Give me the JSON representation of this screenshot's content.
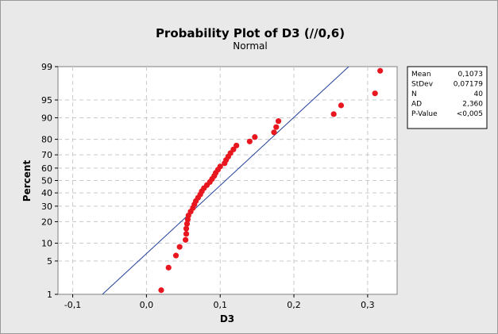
{
  "chart_data": {
    "type": "scatter",
    "title": "Probability Plot of D3 (//0,6)",
    "subtitle": "Normal",
    "xlabel": "D3",
    "ylabel": "Percent",
    "xlim": [
      -0.12,
      0.34
    ],
    "x_ticks": [
      -0.1,
      0.0,
      0.1,
      0.2,
      0.3
    ],
    "x_tick_labels": [
      "-0,1",
      "0,0",
      "0,1",
      "0,2",
      "0,3"
    ],
    "y_ticks": [
      1,
      5,
      10,
      20,
      30,
      40,
      50,
      60,
      70,
      80,
      90,
      95,
      99
    ],
    "y_tick_labels": [
      "1",
      "5",
      "10",
      "20",
      "30",
      "40",
      "50",
      "60",
      "70",
      "80",
      "90",
      "95",
      "99"
    ],
    "y_scale": "normal-probability",
    "grid": true,
    "fit_line": {
      "mean": 0.1073,
      "stdev": 0.07179,
      "color": "#1f3f9a"
    },
    "marker_color": "#e8161e",
    "points": [
      [
        0.02,
        1.25
      ],
      [
        0.03,
        3.75
      ],
      [
        0.04,
        6.25
      ],
      [
        0.045,
        8.75
      ],
      [
        0.053,
        11.25
      ],
      [
        0.054,
        13.75
      ],
      [
        0.054,
        16.25
      ],
      [
        0.055,
        18.75
      ],
      [
        0.056,
        21.25
      ],
      [
        0.057,
        23.75
      ],
      [
        0.06,
        26.25
      ],
      [
        0.063,
        28.75
      ],
      [
        0.065,
        31.25
      ],
      [
        0.067,
        33.75
      ],
      [
        0.07,
        36.25
      ],
      [
        0.073,
        38.75
      ],
      [
        0.075,
        41.25
      ],
      [
        0.078,
        43.75
      ],
      [
        0.082,
        46.25
      ],
      [
        0.086,
        48.75
      ],
      [
        0.089,
        51.25
      ],
      [
        0.092,
        53.75
      ],
      [
        0.094,
        56.25
      ],
      [
        0.097,
        58.75
      ],
      [
        0.1,
        61.25
      ],
      [
        0.106,
        63.75
      ],
      [
        0.108,
        66.25
      ],
      [
        0.111,
        68.75
      ],
      [
        0.114,
        71.25
      ],
      [
        0.118,
        73.75
      ],
      [
        0.122,
        76.25
      ],
      [
        0.14,
        78.75
      ],
      [
        0.147,
        81.25
      ],
      [
        0.173,
        83.75
      ],
      [
        0.176,
        86.25
      ],
      [
        0.179,
        88.75
      ],
      [
        0.254,
        91.25
      ],
      [
        0.264,
        93.75
      ],
      [
        0.31,
        96.25
      ],
      [
        0.317,
        98.75
      ]
    ],
    "legend": {
      "position": "right",
      "rows": [
        {
          "label": "Mean",
          "value": "0,1073"
        },
        {
          "label": "StDev",
          "value": "0,07179"
        },
        {
          "label": "N",
          "value": "40"
        },
        {
          "label": "AD",
          "value": "2,360"
        },
        {
          "label": "P-Value",
          "value": "<0,005"
        }
      ]
    }
  }
}
